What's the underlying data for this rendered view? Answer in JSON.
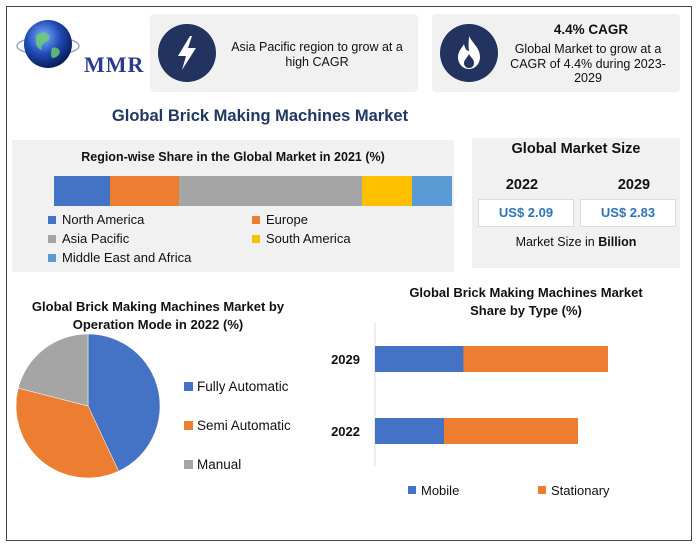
{
  "logo": {
    "text": "MMR"
  },
  "cards": {
    "growth_text": "Asia Pacific region to grow at a high CAGR",
    "cagr_title": "4.4% CAGR",
    "cagr_text": "Global Market to grow at a CAGR of 4.4% during 2023-2029"
  },
  "main_title": "Global Brick Making Machines Market",
  "colors": {
    "blue": "#4472c4",
    "orange": "#ed7d31",
    "gray": "#a5a5a5",
    "yellow": "#ffc000",
    "lightblue": "#5b9bd5",
    "navy": "#22335f"
  },
  "market_size": {
    "title": "Global Market Size",
    "years": [
      "2022",
      "2029"
    ],
    "values": [
      "US$ 2.09",
      "US$ 2.83"
    ],
    "caption_prefix": "Market Size in ",
    "caption_unit": "Billion"
  },
  "chart_data": [
    {
      "type": "bar",
      "stacked": true,
      "orientation": "horizontal",
      "title": "Region-wise Share in the Global Market in 2021 (%)",
      "series": [
        {
          "name": "North America",
          "values": [
            14
          ],
          "color": "#4472c4"
        },
        {
          "name": "Europe",
          "values": [
            17.5
          ],
          "color": "#ed7d31"
        },
        {
          "name": "Asia Pacific",
          "values": [
            46
          ],
          "color": "#a5a5a5"
        },
        {
          "name": "South America",
          "values": [
            12.5
          ],
          "color": "#ffc000"
        },
        {
          "name": "Middle East and Africa",
          "values": [
            10
          ],
          "color": "#5b9bd5"
        }
      ],
      "legend": "bottom"
    },
    {
      "type": "pie",
      "title": "Global Brick Making Machines Market by Operation Mode in 2022 (%)",
      "slices": [
        {
          "name": "Fully Automatic",
          "value": 43,
          "color": "#4472c4"
        },
        {
          "name": "Semi Automatic",
          "value": 36,
          "color": "#ed7d31"
        },
        {
          "name": "Manual",
          "value": 21,
          "color": "#a5a5a5"
        }
      ],
      "legend": "right"
    },
    {
      "type": "bar",
      "stacked": true,
      "orientation": "horizontal",
      "title": "Global Brick Making Machines Market Share by Type (%)",
      "categories": [
        "2029",
        "2022"
      ],
      "series": [
        {
          "name": "Mobile",
          "values": [
            38,
            34
          ],
          "color": "#4472c4"
        },
        {
          "name": "Stationary",
          "values": [
            62,
            66
          ],
          "color": "#ed7d31"
        }
      ],
      "legend": "bottom"
    }
  ]
}
